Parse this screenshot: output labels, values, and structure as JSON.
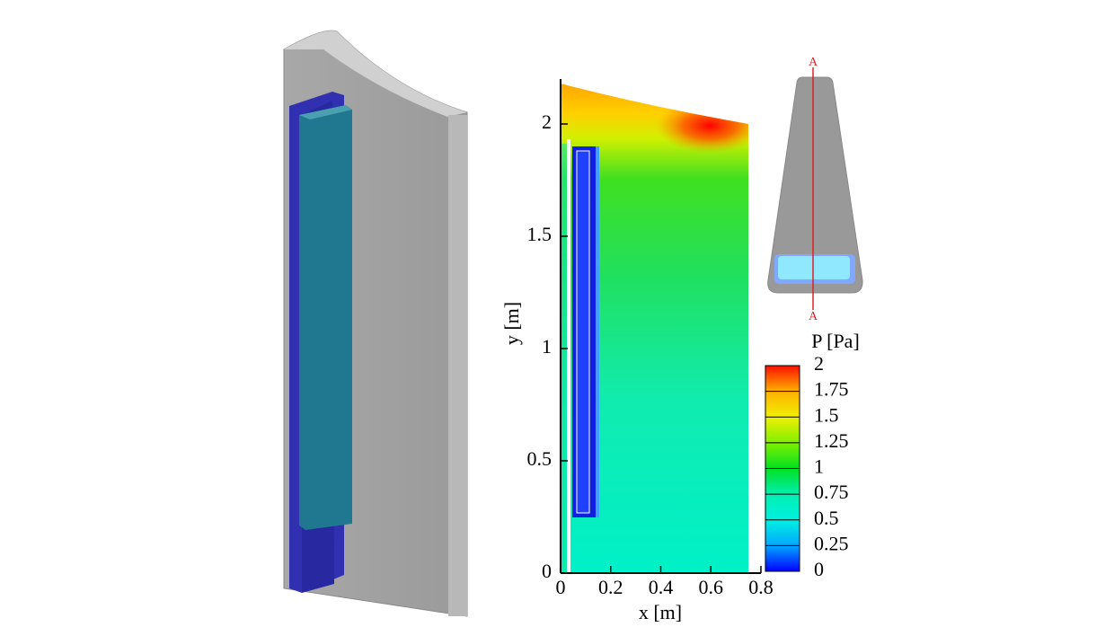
{
  "chart_data": {
    "type": "contour",
    "x_label": "x [m]",
    "y_label": "y [m]",
    "xlim": [
      0,
      0.8
    ],
    "xticks": [
      0,
      0.2,
      0.4,
      0.6,
      0.8
    ],
    "ylim": [
      0,
      2.2
    ],
    "yticks": [
      0,
      0.5,
      1,
      1.5,
      2
    ],
    "colorbar": {
      "title": "P [Pa]",
      "zlim": [
        0,
        2
      ],
      "zticks": [
        0,
        0.25,
        0.5,
        0.75,
        1,
        1.25,
        1.5,
        1.75,
        2
      ],
      "colors": [
        "#0000ff",
        "#00a8ff",
        "#00f0e0",
        "#00f0b0",
        "#00e020",
        "#80f000",
        "#f0f000",
        "#ffb000",
        "#ff1000"
      ]
    },
    "section_labels": [
      "A",
      "A"
    ]
  }
}
